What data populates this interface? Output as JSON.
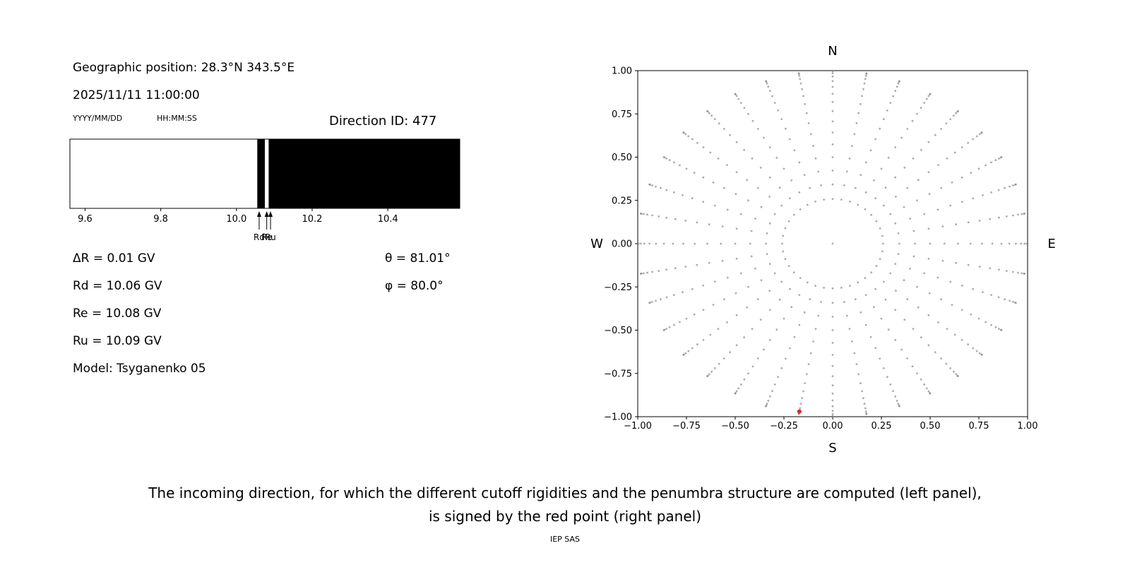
{
  "colors": {
    "grid_dot": "#808080",
    "red_point": "#d62728",
    "band_black": "#000000",
    "band_white": "#ffffff",
    "background": "#ffffff"
  },
  "left_panel": {
    "geographic_position": "Geographic position: 28.3°N 343.5°E",
    "datetime": "2025/11/11 11:00:00",
    "date_format_label": "YYYY/MM/DD",
    "time_format_label": "HH:MM:SS",
    "direction_id": "Direction ID: 477",
    "delta_r": "ΔR = 0.01 GV",
    "rd": "Rd = 10.06 GV",
    "re": "Re = 10.08 GV",
    "ru": "Ru = 10.09 GV",
    "model": "Model: Tsyganenko 05",
    "theta": "θ = 81.01°",
    "phi": "φ = 80.0°"
  },
  "caption": {
    "line1": "The incoming direction, for which the different cutoff rigidities and the penumbra structure are computed (left panel),",
    "line2": "is signed by the red point (right panel)",
    "credit": "IEP SAS"
  },
  "chart_data": [
    {
      "type": "area",
      "name": "penumbra-structure",
      "title": "",
      "xlabel": "",
      "ylabel": "",
      "xlim": [
        9.56,
        10.59
      ],
      "xticks": [
        9.6,
        9.8,
        10.0,
        10.2,
        10.4
      ],
      "xtick_labels": [
        "9.6",
        "9.8",
        "10.0",
        "10.2",
        "10.4"
      ],
      "segments": [
        {
          "from": 9.56,
          "to": 10.055,
          "color": "#ffffff"
        },
        {
          "from": 10.055,
          "to": 10.075,
          "color": "#000000"
        },
        {
          "from": 10.075,
          "to": 10.085,
          "color": "#ffffff"
        },
        {
          "from": 10.085,
          "to": 10.59,
          "color": "#000000"
        }
      ],
      "markers": [
        {
          "label": "Rd",
          "x": 10.06
        },
        {
          "label": "Re",
          "x": 10.08
        },
        {
          "label": "Ru",
          "x": 10.09
        }
      ]
    },
    {
      "type": "scatter",
      "name": "arrival-direction-map",
      "title": "",
      "xlim": [
        -1,
        1
      ],
      "ylim": [
        -1,
        1
      ],
      "xticks": [
        -1.0,
        -0.75,
        -0.5,
        -0.25,
        0.0,
        0.25,
        0.5,
        0.75,
        1.0
      ],
      "xtick_labels": [
        "−1.00",
        "−0.75",
        "−0.50",
        "−0.25",
        "0.00",
        "0.25",
        "0.50",
        "0.75",
        "1.00"
      ],
      "yticks": [
        -1.0,
        -0.75,
        -0.5,
        -0.25,
        0.0,
        0.25,
        0.5,
        0.75,
        1.0
      ],
      "ytick_labels": [
        "−1.00",
        "−0.75",
        "−0.50",
        "−0.25",
        "0.00",
        "0.25",
        "0.50",
        "0.75",
        "1.00"
      ],
      "compass": {
        "top": "N",
        "bottom": "S",
        "left": "W",
        "right": "E"
      },
      "grid_points": {
        "azimuth_start_deg": 0,
        "azimuth_step_deg": 10,
        "azimuth_count": 36,
        "zenith_angles_deg": [
          15,
          20,
          25,
          30,
          35,
          40,
          45,
          50,
          55,
          60,
          65,
          70,
          75,
          80,
          85,
          90
        ],
        "radius_mapping": "r = sin(zenith)",
        "includes_center_point": true
      },
      "selected_direction": {
        "x": -0.171,
        "y": -0.97,
        "theta_deg": 81.01,
        "phi_deg": 80.0
      }
    }
  ]
}
